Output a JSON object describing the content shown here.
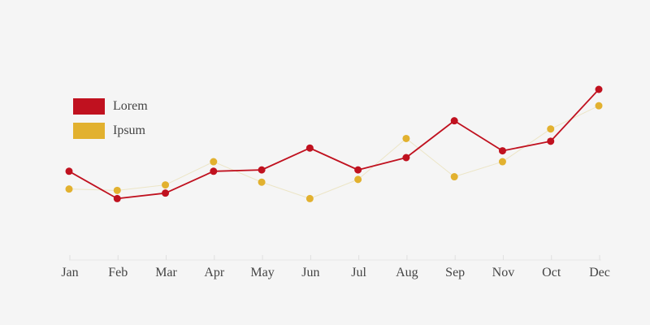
{
  "chart_data": {
    "type": "line",
    "title": "",
    "xlabel": "",
    "ylabel": "",
    "categories": [
      "Jan",
      "Feb",
      "Mar",
      "Apr",
      "May",
      "Jun",
      "Jul",
      "Aug",
      "Sep",
      "Nov",
      "Oct",
      "Dec"
    ],
    "ylim": [
      0,
      100
    ],
    "grid": false,
    "legend_position": "left",
    "series": [
      {
        "name": "Lorem",
        "color": "#c0111f",
        "line_style": "solid",
        "values": [
          40,
          20,
          24,
          40,
          41,
          57,
          41,
          50,
          77,
          55,
          62,
          100
        ]
      },
      {
        "name": "Ipsum",
        "color": "#e2b12f",
        "line_style": "faint",
        "values": [
          27,
          26,
          30,
          47,
          32,
          20,
          34,
          64,
          36,
          47,
          71,
          88
        ]
      }
    ]
  }
}
